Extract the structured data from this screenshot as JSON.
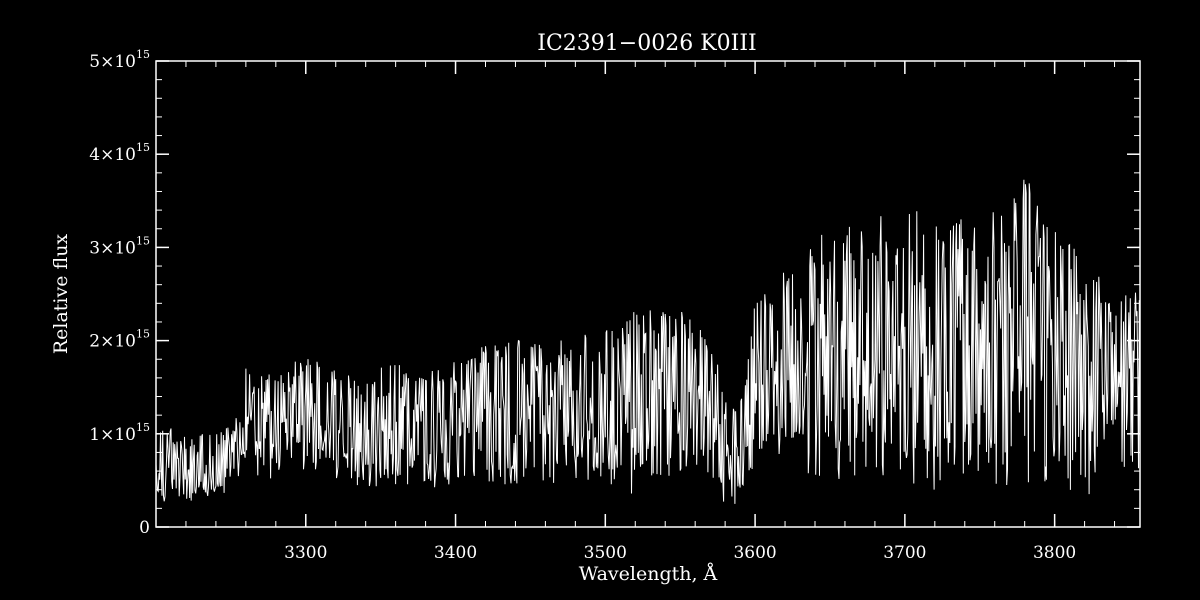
{
  "chart_data": {
    "type": "line",
    "title": "IC2391−0026   K0III",
    "xlabel": "Wavelength, Å",
    "ylabel": "Relative flux",
    "xlim": [
      3200,
      3857
    ],
    "ylim": [
      0,
      5000000000000000.0
    ],
    "x_ticks": [
      3300,
      3400,
      3500,
      3600,
      3700,
      3800
    ],
    "y_ticks": [
      {
        "value": 0,
        "mantissa": "0",
        "exp": ""
      },
      {
        "value": 1000000000000000.0,
        "mantissa": "1×10",
        "exp": "15"
      },
      {
        "value": 2000000000000000.0,
        "mantissa": "2×10",
        "exp": "15"
      },
      {
        "value": 3000000000000000.0,
        "mantissa": "3×10",
        "exp": "15"
      },
      {
        "value": 4000000000000000.0,
        "mantissa": "4×10",
        "exp": "15"
      },
      {
        "value": 5000000000000000.0,
        "mantissa": "5×10",
        "exp": "15"
      }
    ],
    "grid": false,
    "colors": {
      "background": "#000000",
      "foreground": "#ffffff",
      "line": "#ffffff"
    },
    "series": [
      {
        "x_start": 3200,
        "x_step": 0.5,
        "envelope_x": [
          3200,
          3220,
          3240,
          3255,
          3260,
          3280,
          3300,
          3320,
          3340,
          3360,
          3380,
          3400,
          3420,
          3440,
          3460,
          3480,
          3500,
          3520,
          3540,
          3560,
          3580,
          3590,
          3600,
          3620,
          3640,
          3660,
          3680,
          3700,
          3720,
          3740,
          3760,
          3780,
          3800,
          3820,
          3840,
          3857
        ],
        "envelope_upper": [
          1200000000000000.0,
          1000000000000000.0,
          1050000000000000.0,
          1200000000000000.0,
          1750000000000000.0,
          1650000000000000.0,
          1900000000000000.0,
          1700000000000000.0,
          1650000000000000.0,
          1850000000000000.0,
          1650000000000000.0,
          1800000000000000.0,
          1950000000000000.0,
          2050000000000000.0,
          2000000000000000.0,
          2050000000000000.0,
          2200000000000000.0,
          2400000000000000.0,
          2350000000000000.0,
          2300000000000000.0,
          1600000000000000.0,
          1350000000000000.0,
          2500000000000000.0,
          2900000000000000.0,
          3100000000000000.0,
          3300000000000000.0,
          3300000000000000.0,
          3500000000000000.0,
          3450000000000000.0,
          3300000000000000.0,
          3400000000000000.0,
          3900000000000000.0,
          3300000000000000.0,
          3000000000000000.0,
          2400000000000000.0,
          2600000000000000.0
        ],
        "envelope_lower": [
          250000000000000.0,
          250000000000000.0,
          300000000000000.0,
          450000000000000.0,
          550000000000000.0,
          500000000000000.0,
          550000000000000.0,
          450000000000000.0,
          400000000000000.0,
          350000000000000.0,
          450000000000000.0,
          350000000000000.0,
          400000000000000.0,
          350000000000000.0,
          400000000000000.0,
          450000000000000.0,
          400000000000000.0,
          350000000000000.0,
          500000000000000.0,
          450000000000000.0,
          250000000000000.0,
          200000000000000.0,
          550000000000000.0,
          650000000000000.0,
          550000000000000.0,
          500000000000000.0,
          500000000000000.0,
          450000000000000.0,
          400000000000000.0,
          500000000000000.0,
          450000000000000.0,
          400000000000000.0,
          450000000000000.0,
          350000000000000.0,
          300000000000000.0,
          600000000000000.0
        ]
      }
    ]
  }
}
